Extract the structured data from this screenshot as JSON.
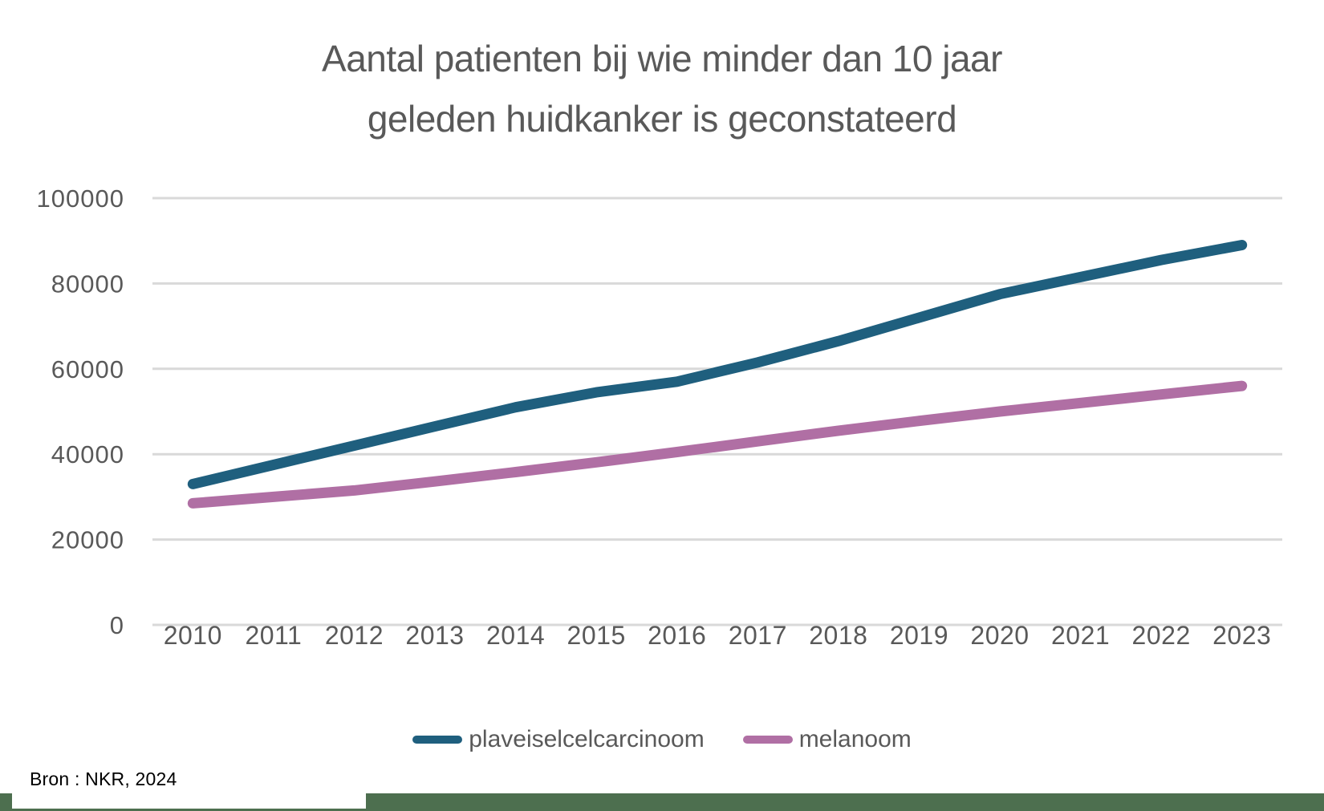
{
  "title": {
    "line1": "Aantal patienten bij wie minder dan 10 jaar",
    "line2": "geleden huidkanker is geconstateerd"
  },
  "source": "Bron : NKR, 2024",
  "colors": {
    "background": "#FFFFFF",
    "title_text": "#595959",
    "axis_text": "#595959",
    "gridline": "#D9D9D9",
    "footer_bar": "#4D6F4F"
  },
  "legend": {
    "items": [
      {
        "label": "plaveiselcelcarcinoom",
        "color": "#1F5F7E"
      },
      {
        "label": "melanoom",
        "color": "#B06FA4"
      }
    ]
  },
  "chart_data": {
    "type": "line",
    "title": "Aantal patienten bij wie minder dan 10 jaar geleden huidkanker is geconstateerd",
    "x": [
      "2010",
      "2011",
      "2012",
      "2013",
      "2014",
      "2015",
      "2016",
      "2017",
      "2018",
      "2019",
      "2020",
      "2021",
      "2022",
      "2023"
    ],
    "series": [
      {
        "name": "plaveiselcelcarcinoom",
        "color": "#1F5F7E",
        "values": [
          33000,
          37500,
          42000,
          46500,
          51000,
          54500,
          57000,
          61500,
          66500,
          72000,
          77500,
          81500,
          85500,
          89000
        ]
      },
      {
        "name": "melanoom",
        "color": "#B06FA4",
        "values": [
          28500,
          30000,
          31500,
          33600,
          35800,
          38100,
          40500,
          43000,
          45500,
          47800,
          50000,
          52000,
          54000,
          56000
        ]
      }
    ],
    "xlabel": "",
    "ylabel": "",
    "ylim": [
      0,
      100000
    ],
    "yticks": [
      0,
      20000,
      40000,
      60000,
      80000,
      100000
    ],
    "grid": "horizontal gridlines on",
    "legend_position": "bottom"
  }
}
